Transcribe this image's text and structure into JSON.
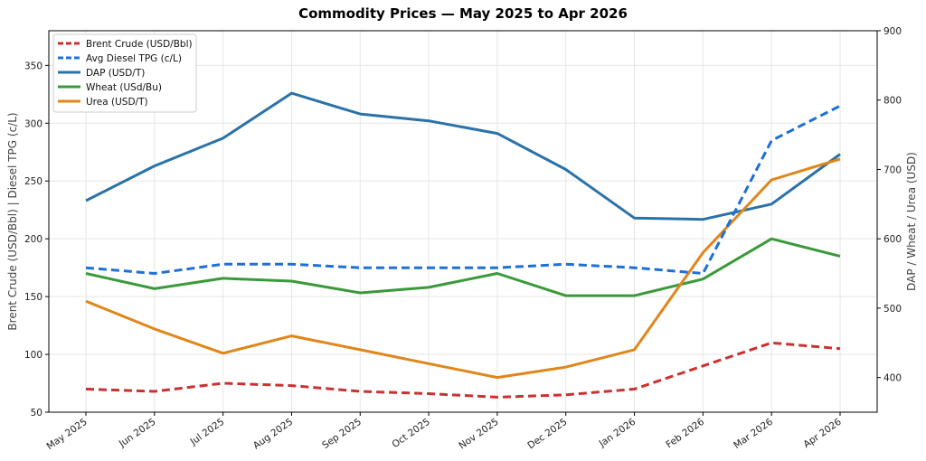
{
  "chart_data": {
    "type": "line",
    "title": "Commodity Prices — May 2025 to Apr 2026",
    "categories": [
      "May 2025",
      "Jun 2025",
      "Jul 2025",
      "Aug 2025",
      "Sep 2025",
      "Oct 2025",
      "Nov 2025",
      "Dec 2025",
      "Jan 2026",
      "Feb 2026",
      "Mar 2026",
      "Apr 2026"
    ],
    "ylabel_left": "Brent Crude (USD/Bbl)  |  Diesel TPG (c/L)",
    "ylabel_right": "DAP / Wheat / Urea (USD)",
    "ylim_left": [
      50,
      380
    ],
    "ylim_right": [
      350,
      900
    ],
    "yticks_left": [
      50,
      100,
      150,
      200,
      250,
      300,
      350
    ],
    "yticks_right": [
      400,
      500,
      600,
      700,
      800,
      900
    ],
    "grid": true,
    "legend_position": "top-left",
    "series": [
      {
        "name": "Brent Crude (USD/Bbl)",
        "axis": "left",
        "style": "dashed",
        "color": "#c83232",
        "values": [
          70,
          68,
          75,
          73,
          68,
          66,
          63,
          65,
          70,
          90,
          110,
          105
        ]
      },
      {
        "name": "Avg Diesel TPG (c/L)",
        "axis": "left",
        "style": "dashed",
        "color": "#1f6fd6",
        "values": [
          175,
          170,
          178,
          178,
          175,
          175,
          175,
          178,
          175,
          170,
          285,
          315
        ]
      },
      {
        "name": "DAP (USD/T)",
        "axis": "right",
        "style": "solid",
        "color": "#2a72a8",
        "values": [
          655,
          705,
          745,
          810,
          780,
          770,
          752,
          700,
          630,
          628,
          650,
          722
        ]
      },
      {
        "name": "Wheat (USd/Bu)",
        "axis": "right",
        "style": "solid",
        "color": "#3a9a3a",
        "values": [
          550,
          528,
          543,
          539,
          522,
          530,
          550,
          518,
          518,
          542,
          600,
          575
        ]
      },
      {
        "name": "Urea (USD/T)",
        "axis": "right",
        "style": "solid",
        "color": "#e0861a",
        "values": [
          510,
          470,
          435,
          460,
          440,
          420,
          400,
          415,
          440,
          580,
          685,
          715
        ]
      }
    ]
  }
}
